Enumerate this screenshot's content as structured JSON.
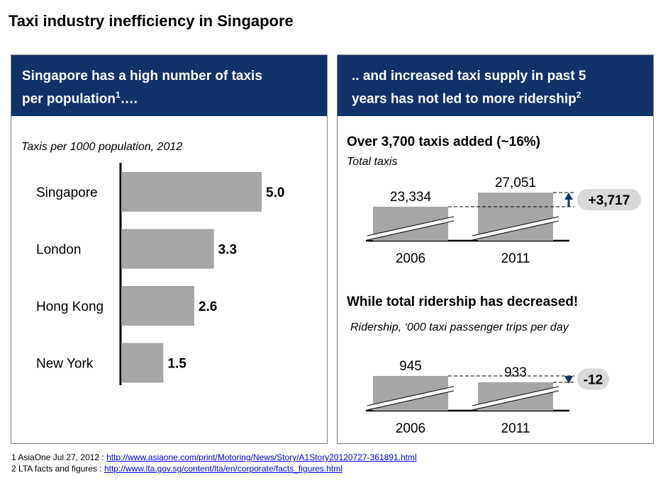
{
  "page_title": "Taxi industry inefficiency in Singapore",
  "left_panel": {
    "heading_line1": "Singapore has a high number of taxis",
    "heading_line2": "per population",
    "heading_sup": "1",
    "heading_tail": "…."
  },
  "right_panel": {
    "heading_line1": ".. and increased taxi supply in past 5",
    "heading_line2": "years has not led to more ridership",
    "heading_sup": "2"
  },
  "chart_data": [
    {
      "type": "bar",
      "orientation": "horizontal",
      "title": "Taxis per 1000 population, 2012",
      "categories": [
        "Singapore",
        "London",
        "Hong Kong",
        "New York"
      ],
      "values": [
        5.0,
        3.3,
        2.6,
        1.5
      ],
      "value_labels": [
        "5.0",
        "3.3",
        "2.6",
        "1.5"
      ],
      "xlim": [
        0,
        5.0
      ],
      "colors": {
        "bar": "#a6a6a6"
      }
    },
    {
      "type": "bar",
      "title": "Over 3,700 taxis added (~16%)",
      "subtitle": "Total taxis",
      "categories": [
        "2006",
        "2011"
      ],
      "values": [
        23334,
        27051
      ],
      "value_labels": [
        "23,334",
        "27,051"
      ],
      "axis_break": true,
      "change_label": "+3,717",
      "change_direction": "up",
      "colors": {
        "bar": "#a6a6a6",
        "arrow": "#0f3369",
        "bubble": "#d9d9d9"
      }
    },
    {
      "type": "bar",
      "title": "While total ridership has decreased!",
      "subtitle": "Ridership, ‘000 taxi passenger trips per day",
      "categories": [
        "2006",
        "2011"
      ],
      "values": [
        945,
        933
      ],
      "value_labels": [
        "945",
        "933"
      ],
      "axis_break": true,
      "change_label": "-12",
      "change_direction": "down",
      "colors": {
        "bar": "#a6a6a6",
        "arrow": "#0f3369",
        "bubble": "#d9d9d9"
      }
    }
  ],
  "footnotes": [
    {
      "prefix": "1 AsiaOne Jul 27, 2012 : ",
      "link": "http://www.asiaone.com/print/Motoring/News/Story/A1Story20120727-361891.html"
    },
    {
      "prefix": "2 LTA facts and figures : ",
      "link": "http://www.lta.gov.sg/content/lta/en/corporate/facts_figures.html"
    }
  ]
}
